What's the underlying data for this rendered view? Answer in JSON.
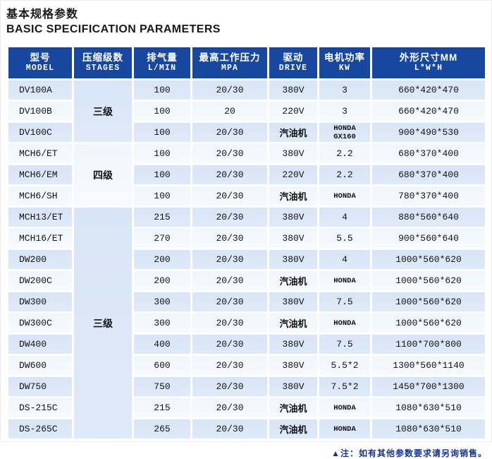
{
  "page": {
    "title_zh": "基本规格参数",
    "title_en": "BASIC SPECIFICATION PARAMETERS",
    "note": "▲注：如有其他参数要求请另询销售。"
  },
  "colors": {
    "header_bg": "#17479e",
    "row_blue": "#dbe7f7",
    "row_light": "#f3f8fd",
    "note_text": "#16338e",
    "body_text": "#121212"
  },
  "table": {
    "headers": [
      {
        "zh": "型号",
        "en": "MODEL"
      },
      {
        "zh": "压缩级数",
        "en": "STAGES"
      },
      {
        "zh": "排气量",
        "en": "L/MIN"
      },
      {
        "zh": "最高工作压力",
        "en": "MPA"
      },
      {
        "zh": "驱动",
        "en": "DRIVE"
      },
      {
        "zh": "电机功率",
        "en": "KW"
      },
      {
        "zh": "外形尺寸MM",
        "en": "L*W*H"
      }
    ],
    "stage_groups": [
      {
        "label": "三级",
        "rows": 3
      },
      {
        "label": "四级",
        "rows": 3
      },
      {
        "label": "三级",
        "rows": 11
      }
    ],
    "rows": [
      {
        "model": "DV100A",
        "displacement": "100",
        "pressure": "20/30",
        "drive": "380V",
        "power": "3",
        "dimensions": "660*420*470"
      },
      {
        "model": "DV100B",
        "displacement": "100",
        "pressure": "20",
        "drive": "220V",
        "power": "3",
        "dimensions": "660*420*470"
      },
      {
        "model": "DV100C",
        "displacement": "100",
        "pressure": "20/30",
        "drive": "汽油机",
        "power": "HONDA\nGX160",
        "dimensions": "900*490*530"
      },
      {
        "model": "MCH6/ET",
        "displacement": "100",
        "pressure": "20/30",
        "drive": "380V",
        "power": "2.2",
        "dimensions": "680*370*400"
      },
      {
        "model": "MCH6/EM",
        "displacement": "100",
        "pressure": "20/30",
        "drive": "220V",
        "power": "2.2",
        "dimensions": "680*370*400"
      },
      {
        "model": "MCH6/SH",
        "displacement": "100",
        "pressure": "20/30",
        "drive": "汽油机",
        "power": "HONDA",
        "dimensions": "780*370*400"
      },
      {
        "model": "MCH13/ET",
        "displacement": "215",
        "pressure": "20/30",
        "drive": "380V",
        "power": "4",
        "dimensions": "880*560*640"
      },
      {
        "model": "MCH16/ET",
        "displacement": "270",
        "pressure": "20/30",
        "drive": "380V",
        "power": "5.5",
        "dimensions": "900*560*640"
      },
      {
        "model": "DW200",
        "displacement": "200",
        "pressure": "20/30",
        "drive": "380V",
        "power": "4",
        "dimensions": "1000*560*620"
      },
      {
        "model": "DW200C",
        "displacement": "200",
        "pressure": "20/30",
        "drive": "汽油机",
        "power": "HONDA",
        "dimensions": "1000*560*620"
      },
      {
        "model": "DW300",
        "displacement": "300",
        "pressure": "20/30",
        "drive": "380V",
        "power": "7.5",
        "dimensions": "1000*560*620"
      },
      {
        "model": "DW300C",
        "displacement": "300",
        "pressure": "20/30",
        "drive": "汽油机",
        "power": "HONDA",
        "dimensions": "1000*560*620"
      },
      {
        "model": "DW400",
        "displacement": "400",
        "pressure": "20/30",
        "drive": "380V",
        "power": "7.5",
        "dimensions": "1100*700*800"
      },
      {
        "model": "DW600",
        "displacement": "600",
        "pressure": "20/30",
        "drive": "380V",
        "power": "5.5*2",
        "dimensions": "1300*560*1140"
      },
      {
        "model": "DW750",
        "displacement": "750",
        "pressure": "20/30",
        "drive": "380V",
        "power": "7.5*2",
        "dimensions": "1450*700*1300"
      },
      {
        "model": "DS-215C",
        "displacement": "215",
        "pressure": "20/30",
        "drive": "汽油机",
        "power": "HONDA",
        "dimensions": "1080*630*510"
      },
      {
        "model": "DS-265C",
        "displacement": "265",
        "pressure": "20/30",
        "drive": "汽油机",
        "power": "HONDA",
        "dimensions": "1080*630*510"
      }
    ]
  }
}
